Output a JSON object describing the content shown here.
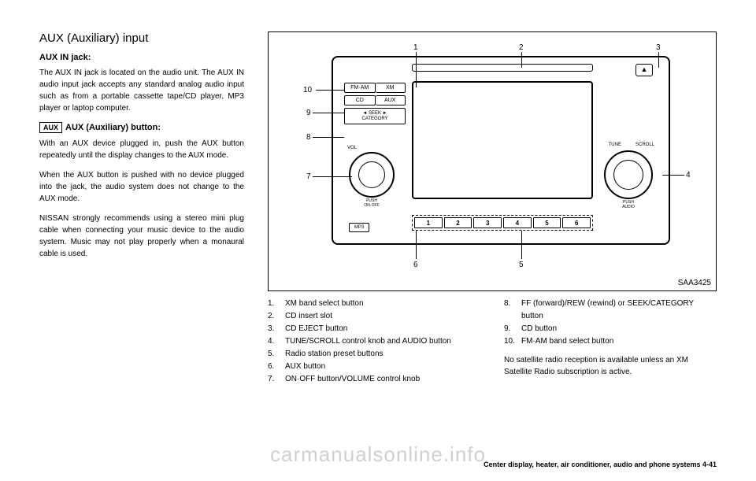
{
  "left": {
    "title": "AUX (Auxiliary) input",
    "h1": "AUX IN jack:",
    "p1": "The AUX IN jack is located on the audio unit. The AUX IN audio input jack accepts any standard analog audio input such as from a portable cassette tape/CD player, MP3 player or laptop computer.",
    "iconText": "AUX",
    "h2rest": "AUX (Auxiliary) button:",
    "p2": "With an AUX device plugged in, push the AUX button repeatedly until the display changes to the AUX mode.",
    "p3": "When the AUX button is pushed with no device plugged into the jack, the audio system does not change to the AUX mode.",
    "p4": "NISSAN strongly recommends using a stereo mini plug cable when connecting your music device to the audio system. Music may not play properly when a monaural cable is used."
  },
  "figure": {
    "code": "SAA3425",
    "buttons": {
      "fmam": "FM·AM",
      "xm": "XM",
      "cd": "CD",
      "aux": "AUX",
      "seek": "◄ SEEK ►",
      "category": "CATEGORY",
      "eject": "▲",
      "vol": "VOL",
      "onoff": "PUSH\nON·OFF",
      "tune": "TUNE",
      "scroll": "SCROLL",
      "audio": "PUSH\nAUDIO",
      "mp3": "MP3"
    },
    "presets": [
      "1",
      "2",
      "3",
      "4",
      "5",
      "6"
    ],
    "callouts": {
      "c1": "1",
      "c2": "2",
      "c3": "3",
      "c4": "4",
      "c5": "5",
      "c6": "6",
      "c7": "7",
      "c8": "8",
      "c9": "9",
      "c10": "10"
    }
  },
  "legend": {
    "left": [
      {
        "n": "1.",
        "t": "XM band select button"
      },
      {
        "n": "2.",
        "t": "CD insert slot"
      },
      {
        "n": "3.",
        "t": "CD EJECT button"
      },
      {
        "n": "4.",
        "t": "TUNE/SCROLL control knob and AUDIO button"
      },
      {
        "n": "5.",
        "t": "Radio station preset buttons"
      },
      {
        "n": "6.",
        "t": "AUX button"
      },
      {
        "n": "7.",
        "t": "ON·OFF button/VOLUME control knob"
      }
    ],
    "right": [
      {
        "n": "8.",
        "t": "FF (forward)/REW (rewind) or SEEK/CATEGORY button"
      },
      {
        "n": "9.",
        "t": "CD button"
      },
      {
        "n": "10.",
        "t": "FM·AM band select button"
      }
    ],
    "note": "No satellite radio reception is available unless an XM Satellite Radio subscription is active."
  },
  "footer": "Center display, heater, air conditioner, audio and phone systems   4-41",
  "watermark": "carmanualsonline.info"
}
